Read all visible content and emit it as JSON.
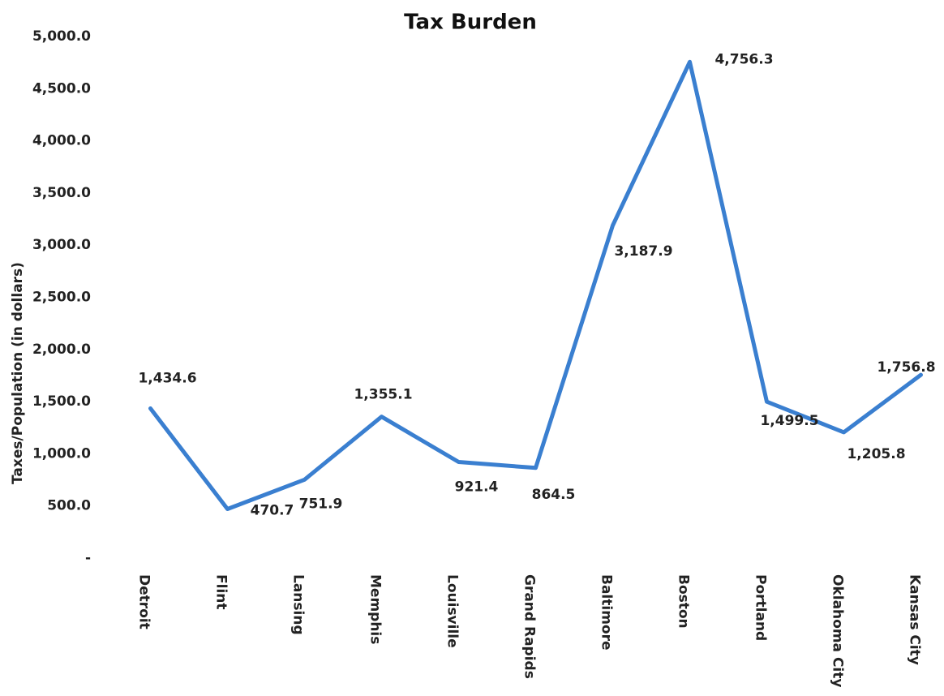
{
  "chart_data": {
    "type": "line",
    "title": "Tax Burden",
    "y_label": "Taxes/Population (in dollars)",
    "categories": [
      "Detroit",
      "Flint",
      "Lansing",
      "Memphis",
      "Louisville",
      "Grand Rapids",
      "Baltimore",
      "Boston",
      "Portland",
      "Oklahoma City",
      "Kansas City"
    ],
    "series": [
      {
        "name": "Tax Burden",
        "color": "#3a7fd0",
        "values": [
          1434.6,
          470.7,
          751.9,
          1355.1,
          921.4,
          864.5,
          3187.9,
          4756.3,
          1499.5,
          1205.8,
          1756.8
        ],
        "value_labels": [
          "1,434.6",
          "470.7",
          "751.9",
          "1,355.1",
          "921.4",
          "864.5",
          "3,187.9",
          "4,756.3",
          "1,499.5",
          "1,205.8",
          "1,756.8"
        ]
      }
    ],
    "ylim": [
      0,
      5000
    ],
    "yticks": [
      {
        "value": 0,
        "label": "-"
      },
      {
        "value": 500,
        "label": "500.0"
      },
      {
        "value": 1000,
        "label": "1,000.0"
      },
      {
        "value": 1500,
        "label": "1,500.0"
      },
      {
        "value": 2000,
        "label": "2,000.0"
      },
      {
        "value": 2500,
        "label": "2,500.0"
      },
      {
        "value": 3000,
        "label": "3,000.0"
      },
      {
        "value": 3500,
        "label": "3,500.0"
      },
      {
        "value": 4000,
        "label": "4,000.0"
      },
      {
        "value": 4500,
        "label": "4,500.0"
      },
      {
        "value": 5000,
        "label": "5,000.0"
      }
    ],
    "grid": false
  }
}
